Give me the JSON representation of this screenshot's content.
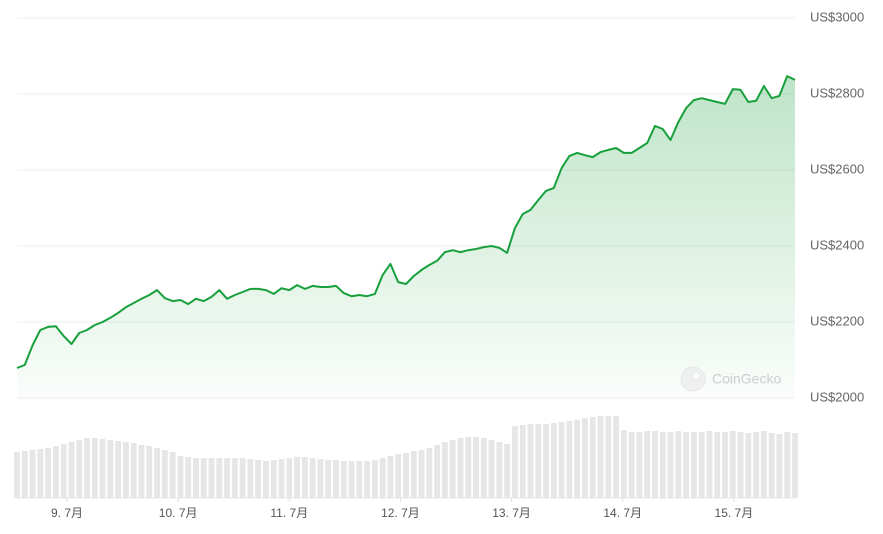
{
  "chart_data": {
    "type": "area",
    "x": [
      8.55,
      8.62,
      8.69,
      8.76,
      8.83,
      8.9,
      8.97,
      9.04,
      9.11,
      9.18,
      9.25,
      9.32,
      9.39,
      9.46,
      9.53,
      9.6,
      9.67,
      9.74,
      9.81,
      9.88,
      9.95,
      10.02,
      10.09,
      10.16,
      10.23,
      10.3,
      10.37,
      10.44,
      10.51,
      10.58,
      10.65,
      10.72,
      10.79,
      10.86,
      10.93,
      11,
      11.07,
      11.14,
      11.21,
      11.28,
      11.35,
      11.42,
      11.49,
      11.56,
      11.63,
      11.7,
      11.77,
      11.84,
      11.91,
      11.98,
      12.05,
      12.12,
      12.19,
      12.26,
      12.33,
      12.4,
      12.47,
      12.54,
      12.61,
      12.68,
      12.75,
      12.82,
      12.89,
      12.96,
      13.03,
      13.1,
      13.17,
      13.24,
      13.31,
      13.38,
      13.45,
      13.52,
      13.59,
      13.66,
      13.73,
      13.8,
      13.87,
      13.94,
      14.01,
      14.08,
      14.15,
      14.22,
      14.29,
      14.36,
      14.43,
      14.5,
      14.57,
      14.64,
      14.71,
      14.78,
      14.85,
      14.92,
      14.99,
      15.06,
      15.13,
      15.2,
      15.27,
      15.34,
      15.41,
      15.48,
      15.55
    ],
    "values": [
      2079,
      2087,
      2139,
      2179,
      2187,
      2189,
      2163,
      2142,
      2171,
      2179,
      2192,
      2200,
      2211,
      2224,
      2239,
      2250,
      2261,
      2271,
      2284,
      2263,
      2255,
      2258,
      2247,
      2261,
      2255,
      2266,
      2284,
      2261,
      2271,
      2279,
      2287,
      2287,
      2284,
      2274,
      2289,
      2284,
      2297,
      2287,
      2295,
      2292,
      2292,
      2295,
      2276,
      2268,
      2271,
      2268,
      2274,
      2324,
      2353,
      2305,
      2300,
      2321,
      2337,
      2350,
      2361,
      2384,
      2389,
      2384,
      2389,
      2392,
      2397,
      2400,
      2395,
      2382,
      2447,
      2484,
      2495,
      2521,
      2545,
      2553,
      2605,
      2637,
      2645,
      2639,
      2634,
      2647,
      2653,
      2658,
      2645,
      2645,
      2658,
      2671,
      2716,
      2708,
      2679,
      2726,
      2763,
      2784,
      2789,
      2784,
      2779,
      2774,
      2813,
      2811,
      2779,
      2782,
      2821,
      2789,
      2795,
      2847,
      2837
    ],
    "volume": [
      46,
      47,
      48,
      49,
      50,
      52,
      54,
      56,
      58,
      60,
      60,
      59,
      58,
      57,
      56,
      55,
      53,
      52,
      50,
      48,
      46,
      42,
      41,
      40,
      40,
      40,
      40,
      40,
      40,
      40,
      39,
      38,
      37,
      38,
      39,
      40,
      41,
      41,
      40,
      39,
      38,
      38,
      37,
      37,
      37,
      37,
      38,
      40,
      42,
      44,
      45,
      47,
      48,
      50,
      53,
      56,
      58,
      60,
      61,
      61,
      60,
      58,
      56,
      54,
      72,
      73,
      74,
      74,
      74,
      75,
      76,
      77,
      78,
      80,
      81,
      82,
      82,
      82,
      68,
      66,
      66,
      67,
      67,
      66,
      66,
      67,
      66,
      66,
      66,
      67,
      66,
      66,
      67,
      66,
      65,
      66,
      67,
      65,
      64,
      66,
      65
    ],
    "color": "#18a03c",
    "volume_color": "#e6e6e6",
    "xlim": [
      8.55,
      15.55
    ],
    "xticks": [
      {
        "value": 9,
        "label": "9. 7月"
      },
      {
        "value": 10,
        "label": "10. 7月"
      },
      {
        "value": 11,
        "label": "11. 7月"
      },
      {
        "value": 12,
        "label": "12. 7月"
      },
      {
        "value": 13,
        "label": "13. 7月"
      },
      {
        "value": 14,
        "label": "14. 7月"
      },
      {
        "value": 15,
        "label": "15. 7月"
      }
    ],
    "ylim": [
      2000,
      3000
    ],
    "yticks": [
      {
        "value": 2000,
        "label": "US$2000"
      },
      {
        "value": 2200,
        "label": "US$2200"
      },
      {
        "value": 2400,
        "label": "US$2400"
      },
      {
        "value": 2600,
        "label": "US$2600"
      },
      {
        "value": 2800,
        "label": "US$2800"
      },
      {
        "value": 3000,
        "label": "US$3000"
      }
    ],
    "grid": true,
    "watermark": "CoinGecko"
  }
}
